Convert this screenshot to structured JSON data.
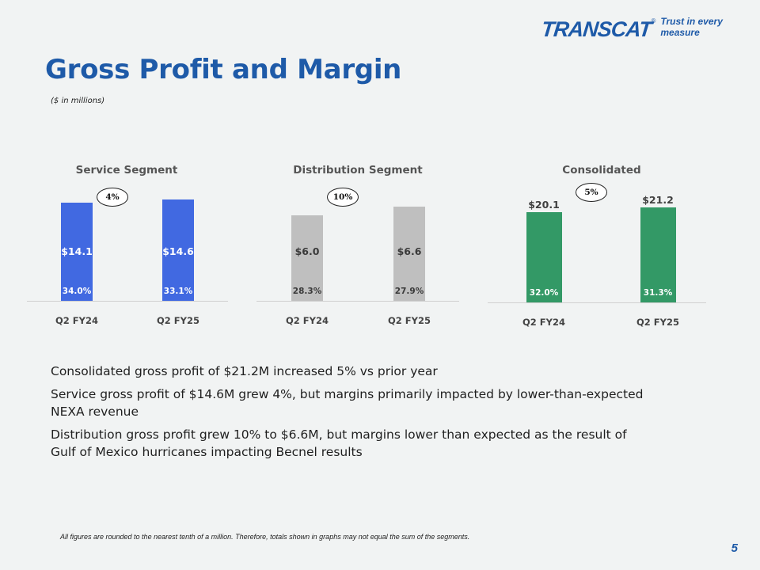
{
  "logo": {
    "wordmark": "TRANSCAT",
    "registered": "®",
    "tagline": "Trust in every measure"
  },
  "page_title": "Gross Profit and Margin",
  "units_note": "($ in millions)",
  "chart_data": [
    {
      "type": "bar",
      "title": "Service Segment",
      "categories": [
        "Q2 FY24",
        "Q2 FY25"
      ],
      "values": [
        14.1,
        14.6
      ],
      "value_labels": [
        "$14.1",
        "$14.6"
      ],
      "margins": [
        "34.0%",
        "33.1%"
      ],
      "growth_label": "4%",
      "color": "#4169e1",
      "value_label_color": "#ffffff",
      "margin_label_color": "#ffffff",
      "value_label_position": "inside"
    },
    {
      "type": "bar",
      "title": "Distribution Segment",
      "categories": [
        "Q2 FY24",
        "Q2 FY25"
      ],
      "values": [
        6.0,
        6.6
      ],
      "value_labels": [
        "$6.0",
        "$6.6"
      ],
      "margins": [
        "28.3%",
        "27.9%"
      ],
      "growth_label": "10%",
      "color": "#bfbfbf",
      "value_label_color": "#3a3a3a",
      "margin_label_color": "#3a3a3a",
      "value_label_position": "inside"
    },
    {
      "type": "bar",
      "title": "Consolidated",
      "categories": [
        "Q2 FY24",
        "Q2 FY25"
      ],
      "values": [
        20.1,
        21.2
      ],
      "value_labels": [
        "$20.1",
        "$21.2"
      ],
      "margins": [
        "32.0%",
        "31.3%"
      ],
      "growth_label": "5%",
      "color": "#339966",
      "value_label_color": "#404040",
      "margin_label_color": "#ffffff",
      "value_label_position": "above"
    }
  ],
  "bullets": [
    "Consolidated gross profit of $21.2M increased 5% vs prior year",
    "Service gross profit of $14.6M grew 4%, but margins primarily impacted by lower-than-expected NEXA revenue",
    "Distribution gross profit grew 10% to $6.6M, but margins lower than expected as the result of Gulf of Mexico hurricanes impacting Becnel results"
  ],
  "footnote": "All figures are rounded to the nearest tenth of a million. Therefore, totals shown in graphs may not equal the sum of the segments.",
  "page_number": "5"
}
